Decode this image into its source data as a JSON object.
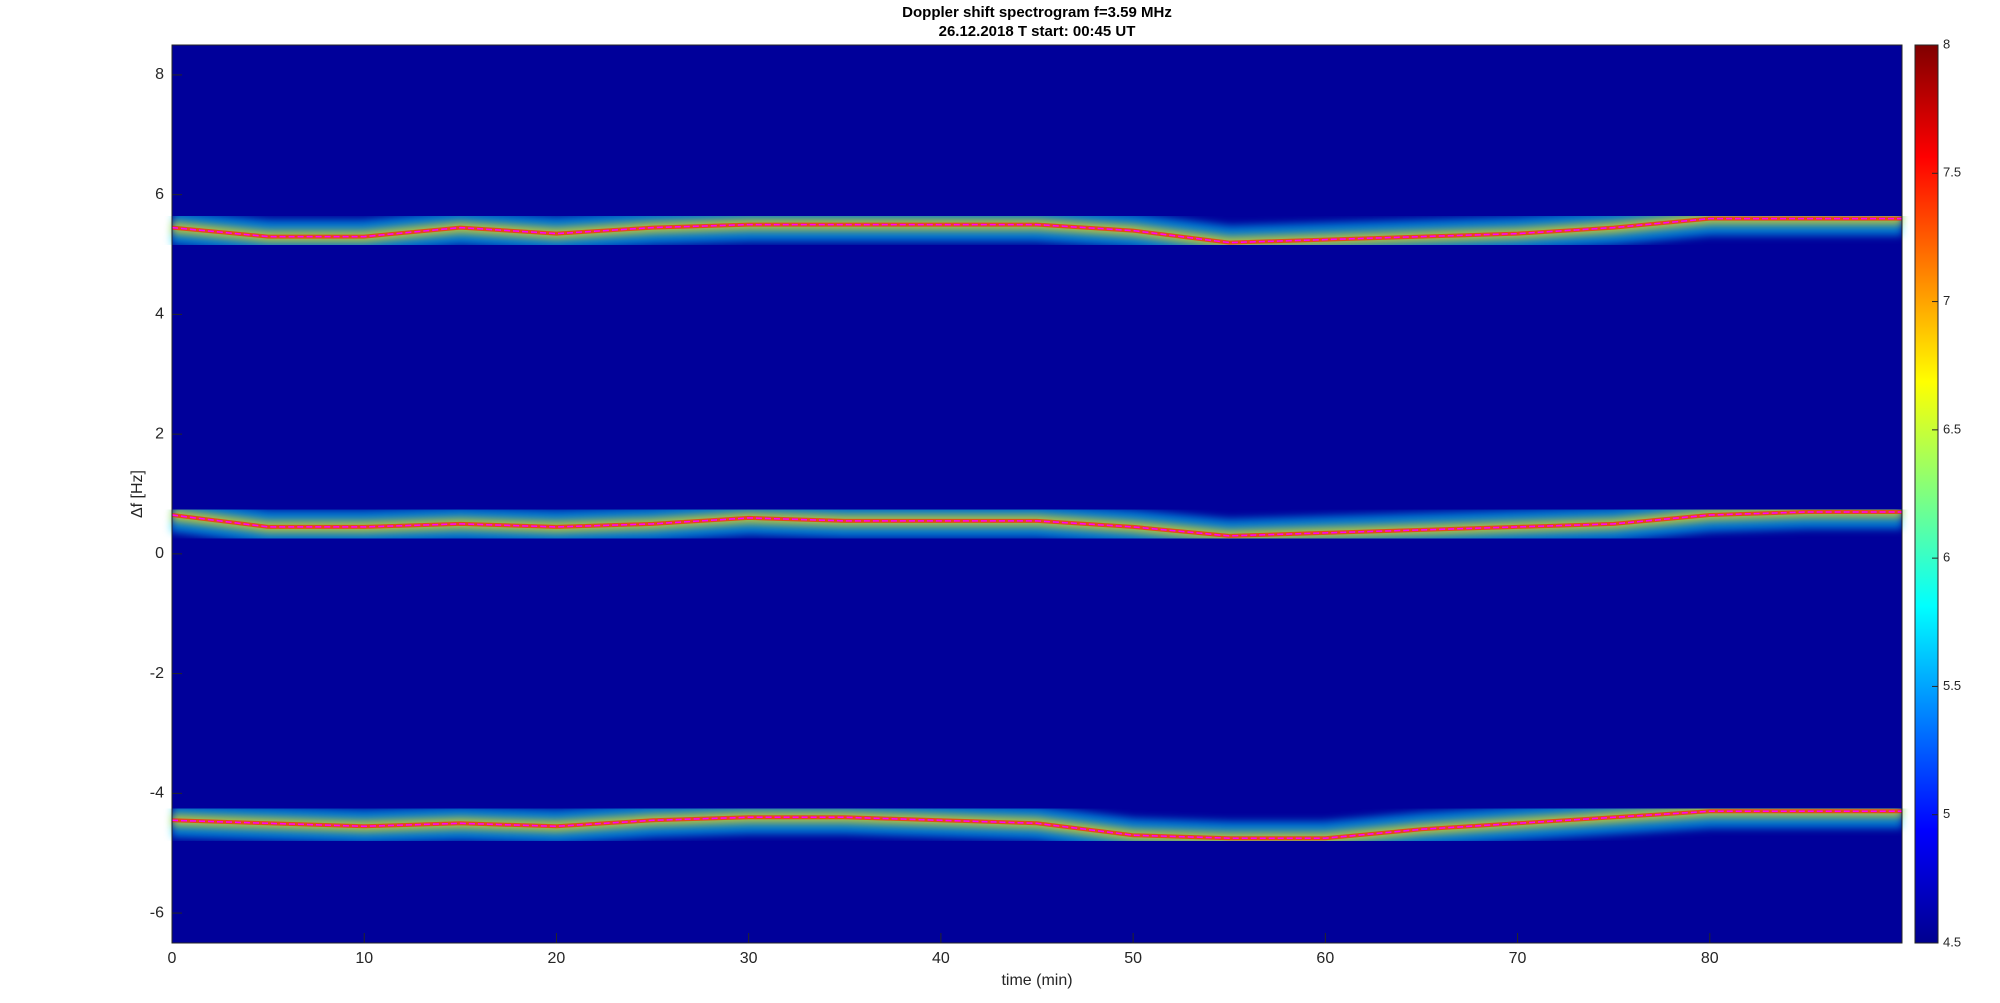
{
  "chart_data": {
    "type": "spectrogram",
    "title": "Doppler shift spectrogram f=3.59 MHz",
    "subtitle": "26.12.2018   T start: 00:45 UT",
    "xlabel": "time (min)",
    "ylabel": "Δf [Hz]",
    "xlim": [
      0,
      90
    ],
    "xticks": [
      0,
      10,
      20,
      30,
      40,
      50,
      60,
      70,
      80
    ],
    "ylim": [
      -6.5,
      8.5
    ],
    "yticks": [
      -6,
      -4,
      -2,
      0,
      2,
      4,
      6,
      8
    ],
    "x": [
      0,
      5,
      10,
      15,
      20,
      25,
      30,
      35,
      40,
      45,
      50,
      55,
      60,
      65,
      70,
      75,
      80,
      85,
      90
    ],
    "series": [
      {
        "color": "#ff00ff",
        "values": [
          5.45,
          5.3,
          5.3,
          5.45,
          5.35,
          5.45,
          5.5,
          5.5,
          5.5,
          5.5,
          5.4,
          5.2,
          5.25,
          5.3,
          5.35,
          5.45,
          5.6,
          5.6,
          5.6
        ]
      },
      {
        "color": "#ff00ff",
        "values": [
          0.65,
          0.45,
          0.45,
          0.5,
          0.45,
          0.5,
          0.6,
          0.55,
          0.55,
          0.55,
          0.45,
          0.3,
          0.35,
          0.4,
          0.45,
          0.5,
          0.65,
          0.7,
          0.7
        ]
      },
      {
        "color": "#ff00ff",
        "values": [
          -4.45,
          -4.5,
          -4.55,
          -4.5,
          -4.55,
          -4.45,
          -4.4,
          -4.4,
          -4.45,
          -4.5,
          -4.7,
          -4.75,
          -4.75,
          -4.6,
          -4.5,
          -4.4,
          -4.3,
          -4.3,
          -4.3
        ]
      }
    ],
    "colorbar": {
      "lim": [
        4.5,
        8
      ],
      "ticks": [
        4.5,
        5,
        5.5,
        6,
        6.5,
        7,
        7.5,
        8
      ],
      "colormap": "jet"
    }
  }
}
